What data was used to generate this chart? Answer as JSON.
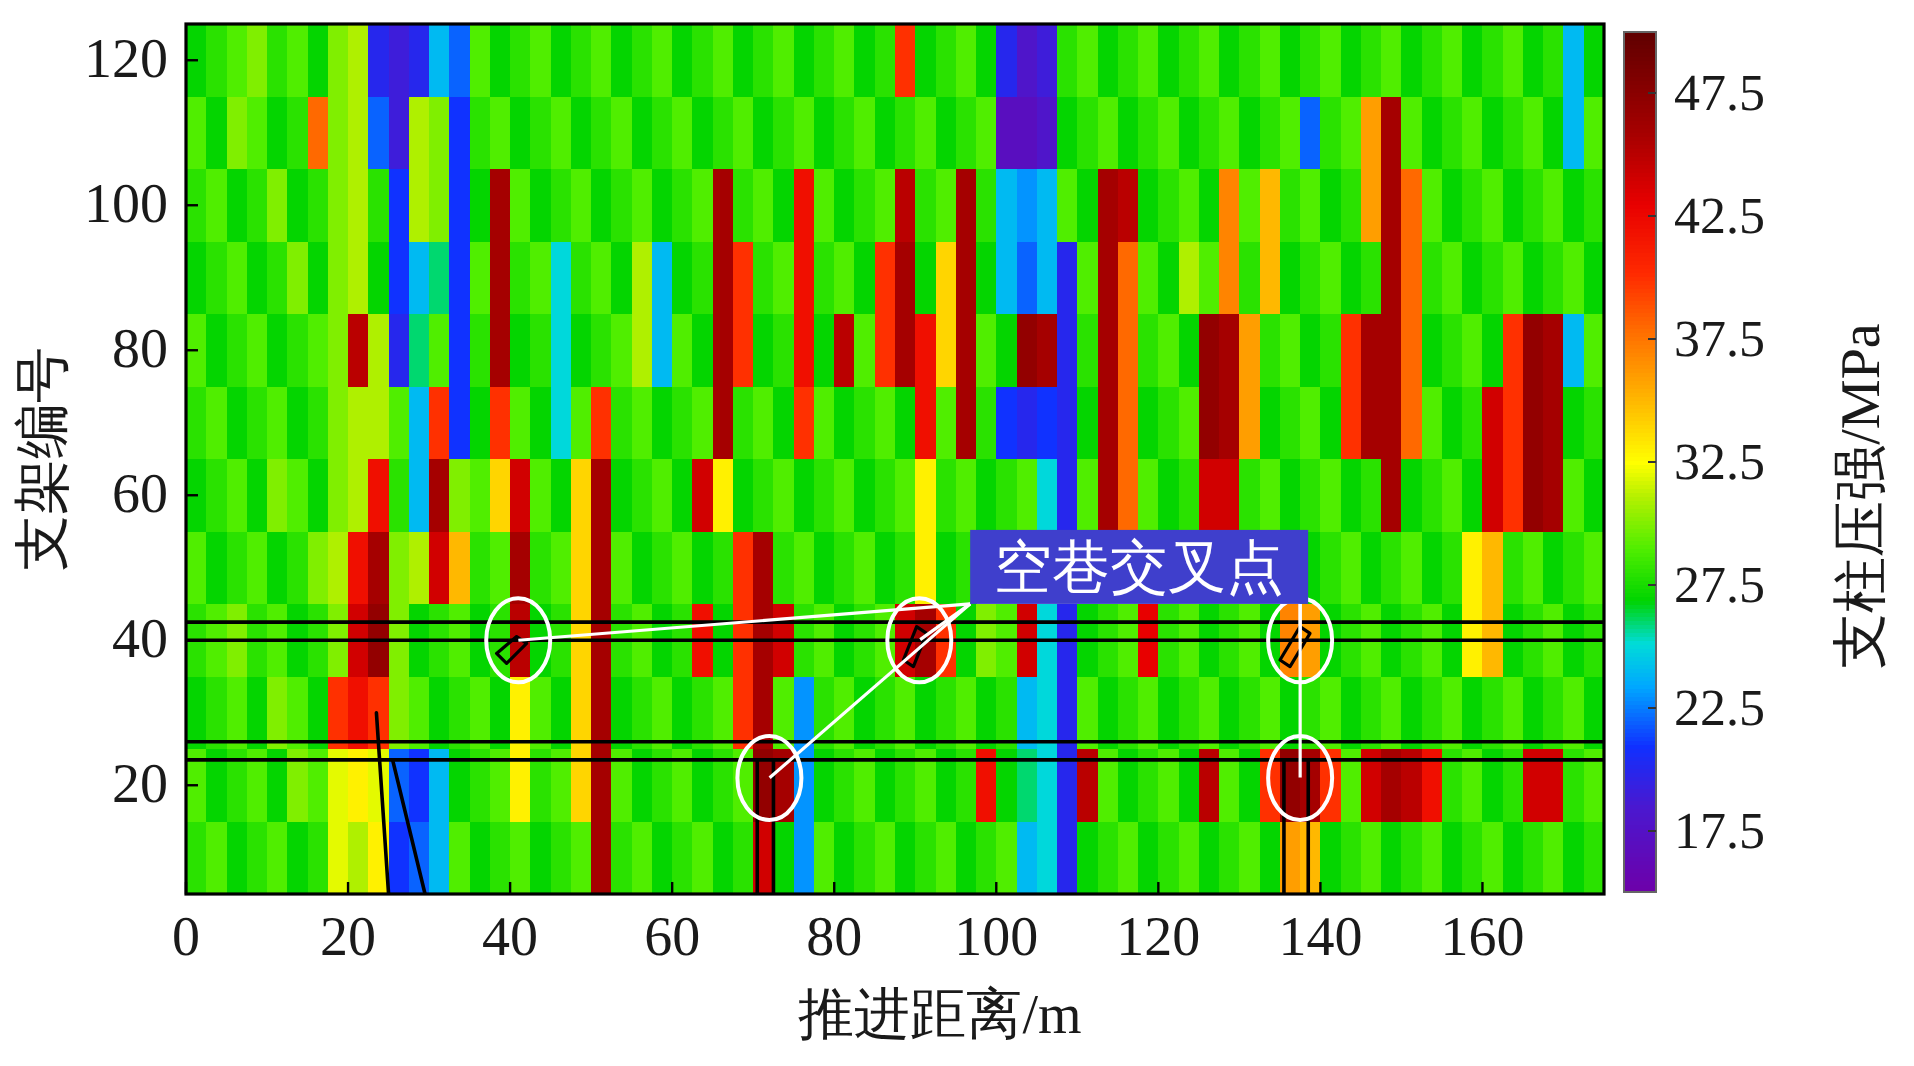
{
  "chart_data": {
    "type": "heatmap",
    "xlabel": "推进距离/m",
    "ylabel": "支架编号",
    "clabel": "支柱压强/MPa",
    "annotations": [
      {
        "text": "空巷交叉点",
        "x": 41,
        "y": 40
      }
    ],
    "x": [
      1.25,
      3.75,
      6.25,
      8.75,
      11.25,
      13.75,
      16.25,
      18.75,
      21.25,
      23.75,
      26.25,
      28.75,
      31.25,
      33.75,
      36.25,
      38.75,
      41.25,
      43.75,
      46.25,
      48.75,
      51.25,
      53.75,
      56.25,
      58.75,
      61.25,
      63.75,
      66.25,
      68.75,
      71.25,
      73.75,
      76.25,
      78.75,
      81.25,
      83.75,
      86.25,
      88.75,
      91.25,
      93.75,
      96.25,
      98.75,
      101.25,
      103.75,
      106.25,
      108.75,
      111.25,
      113.75,
      116.25,
      118.75,
      121.25,
      123.75,
      126.25,
      128.75,
      131.25,
      133.75,
      136.25,
      138.75,
      141.25,
      143.75,
      146.25,
      148.75,
      151.25,
      153.75,
      156.25,
      158.75,
      161.25,
      163.75,
      166.25,
      168.75,
      171.25,
      173.75
    ],
    "y": [
      120,
      110,
      100,
      90,
      80,
      70,
      60,
      50,
      40,
      30,
      20,
      10
    ],
    "xlim": [
      0,
      175
    ],
    "xticks": [
      0,
      20,
      40,
      60,
      80,
      100,
      120,
      140,
      160
    ],
    "ylim": [
      5,
      125
    ],
    "yticks": [
      20,
      40,
      60,
      80,
      100,
      120
    ],
    "clim": [
      15,
      50
    ],
    "cticks": [
      17.5,
      22.5,
      27.5,
      32.5,
      37.5,
      42.5,
      47.5
    ],
    "cells": [
      [
        27,
        28,
        29,
        30,
        28,
        29,
        27,
        30,
        31,
        20,
        19,
        20,
        24,
        22,
        29,
        27,
        28,
        29,
        27,
        28,
        29,
        27,
        28,
        29,
        27,
        28,
        29,
        27,
        28,
        29,
        27,
        28,
        29,
        27,
        28,
        40,
        27,
        28,
        29,
        27,
        20,
        18,
        19,
        28,
        29,
        27,
        28,
        29,
        27,
        28,
        29,
        27,
        28,
        29,
        27,
        28,
        29,
        27,
        28,
        29,
        27,
        28,
        29,
        27,
        28,
        29,
        27,
        28,
        24,
        27
      ],
      [
        29,
        27,
        30,
        29,
        27,
        28,
        38,
        30,
        31,
        22,
        19,
        31,
        30,
        21,
        28,
        29,
        27,
        28,
        29,
        27,
        28,
        29,
        27,
        28,
        29,
        27,
        28,
        29,
        27,
        28,
        29,
        27,
        28,
        29,
        27,
        28,
        29,
        27,
        28,
        29,
        17,
        17,
        18,
        27,
        28,
        29,
        27,
        28,
        29,
        27,
        28,
        29,
        27,
        28,
        29,
        22,
        28,
        29,
        36,
        46,
        29,
        27,
        28,
        29,
        27,
        28,
        29,
        27,
        24,
        29
      ],
      [
        28,
        29,
        27,
        28,
        30,
        27,
        28,
        30,
        31,
        28,
        21,
        31,
        30,
        21,
        27,
        46,
        29,
        27,
        28,
        29,
        27,
        28,
        29,
        27,
        28,
        29,
        46,
        28,
        29,
        27,
        42,
        29,
        27,
        28,
        29,
        45,
        28,
        29,
        46,
        28,
        24,
        23,
        24,
        29,
        27,
        46,
        45,
        27,
        28,
        29,
        27,
        37,
        29,
        35,
        28,
        29,
        27,
        28,
        36,
        46,
        38,
        29,
        27,
        28,
        29,
        27,
        28,
        29,
        27,
        28
      ],
      [
        27,
        28,
        29,
        27,
        28,
        30,
        27,
        30,
        31,
        27,
        21,
        24,
        26,
        21,
        29,
        46,
        28,
        29,
        25,
        28,
        29,
        27,
        31,
        24,
        27,
        28,
        46,
        40,
        28,
        29,
        42,
        28,
        29,
        27,
        40,
        46,
        27,
        34,
        46,
        27,
        24,
        22,
        24,
        20,
        29,
        46,
        38,
        29,
        27,
        31,
        29,
        37,
        28,
        35,
        27,
        28,
        29,
        27,
        28,
        46,
        38,
        28,
        29,
        27,
        28,
        29,
        27,
        28,
        29,
        27
      ],
      [
        29,
        27,
        28,
        29,
        27,
        28,
        29,
        30,
        45,
        31,
        20,
        26,
        29,
        21,
        28,
        46,
        27,
        28,
        25,
        27,
        28,
        29,
        31,
        24,
        29,
        27,
        46,
        40,
        27,
        28,
        42,
        27,
        45,
        29,
        40,
        46,
        42,
        34,
        46,
        29,
        27,
        47,
        46,
        20,
        28,
        46,
        38,
        28,
        29,
        27,
        47,
        46,
        36,
        28,
        29,
        27,
        28,
        40,
        46,
        46,
        38,
        27,
        28,
        29,
        27,
        40,
        47,
        46,
        24,
        29
      ],
      [
        28,
        29,
        27,
        28,
        29,
        27,
        28,
        30,
        31,
        31,
        29,
        24,
        40,
        21,
        27,
        40,
        29,
        27,
        25,
        29,
        40,
        28,
        29,
        27,
        28,
        29,
        46,
        28,
        29,
        27,
        40,
        29,
        27,
        28,
        29,
        27,
        42,
        29,
        46,
        28,
        21,
        20,
        21,
        20,
        27,
        46,
        38,
        27,
        28,
        29,
        47,
        46,
        36,
        27,
        28,
        29,
        27,
        40,
        46,
        46,
        38,
        29,
        27,
        28,
        44,
        40,
        47,
        46,
        27,
        28
      ],
      [
        27,
        28,
        29,
        27,
        30,
        29,
        27,
        30,
        31,
        42,
        28,
        24,
        46,
        30,
        29,
        34,
        44,
        29,
        27,
        34,
        46,
        27,
        28,
        29,
        27,
        44,
        33,
        27,
        28,
        29,
        27,
        28,
        29,
        27,
        28,
        29,
        33,
        28,
        29,
        27,
        28,
        29,
        25,
        20,
        29,
        46,
        38,
        29,
        27,
        28,
        44,
        44,
        28,
        29,
        27,
        28,
        29,
        27,
        28,
        46,
        27,
        28,
        29,
        27,
        44,
        40,
        47,
        46,
        29,
        27
      ],
      [
        29,
        27,
        28,
        29,
        27,
        28,
        30,
        31,
        42,
        46,
        30,
        31,
        44,
        35,
        28,
        29,
        46,
        28,
        29,
        34,
        46,
        29,
        27,
        28,
        29,
        27,
        28,
        40,
        46,
        28,
        29,
        27,
        28,
        29,
        27,
        28,
        33,
        27,
        28,
        null,
        null,
        null,
        null,
        null,
        null,
        null,
        null,
        null,
        null,
        null,
        null,
        null,
        null,
        null,
        null,
        27,
        28,
        29,
        27,
        28,
        29,
        27,
        28,
        33,
        35,
        28,
        29,
        27,
        28,
        29
      ],
      [
        28,
        29,
        30,
        28,
        29,
        27,
        28,
        30,
        44,
        47,
        30,
        27,
        28,
        29,
        27,
        28,
        45,
        27,
        28,
        34,
        46,
        28,
        29,
        27,
        28,
        42,
        27,
        40,
        46,
        44,
        28,
        29,
        27,
        28,
        29,
        44,
        46,
        40,
        27,
        30,
        29,
        44,
        25,
        20,
        27,
        28,
        29,
        43,
        28,
        29,
        27,
        28,
        29,
        27,
        37,
        36,
        27,
        28,
        29,
        27,
        28,
        29,
        27,
        33,
        35,
        27,
        28,
        29,
        27,
        28
      ],
      [
        27,
        28,
        29,
        27,
        30,
        29,
        27,
        40,
        42,
        40,
        30,
        29,
        27,
        28,
        29,
        27,
        33,
        29,
        27,
        34,
        46,
        27,
        28,
        29,
        27,
        28,
        29,
        40,
        46,
        29,
        23,
        28,
        29,
        27,
        28,
        29,
        27,
        28,
        29,
        27,
        28,
        24,
        25,
        20,
        29,
        27,
        28,
        29,
        27,
        28,
        29,
        27,
        28,
        29,
        27,
        28,
        29,
        27,
        28,
        29,
        27,
        28,
        29,
        27,
        28,
        29,
        27,
        28,
        29,
        27
      ],
      [
        29,
        27,
        28,
        29,
        27,
        30,
        29,
        32,
        33,
        32,
        22,
        21,
        24,
        27,
        28,
        29,
        33,
        28,
        29,
        34,
        46,
        29,
        27,
        28,
        29,
        27,
        28,
        29,
        47,
        46,
        23,
        27,
        28,
        29,
        27,
        28,
        29,
        27,
        28,
        42,
        27,
        26,
        25,
        20,
        45,
        29,
        27,
        28,
        29,
        27,
        45,
        29,
        27,
        40,
        47,
        46,
        40,
        29,
        44,
        46,
        45,
        42,
        28,
        29,
        27,
        28,
        44,
        44,
        28,
        29
      ],
      [
        28,
        29,
        27,
        28,
        29,
        27,
        28,
        32,
        31,
        33,
        21,
        22,
        24,
        29,
        27,
        28,
        29,
        27,
        28,
        29,
        46,
        28,
        29,
        27,
        28,
        29,
        27,
        28,
        44,
        27,
        23,
        29,
        27,
        28,
        29,
        27,
        28,
        29,
        27,
        28,
        29,
        24,
        25,
        20,
        27,
        28,
        29,
        27,
        28,
        29,
        27,
        28,
        29,
        27,
        36,
        35,
        27,
        28,
        29,
        27,
        28,
        29,
        27,
        28,
        29,
        27,
        28,
        29,
        27,
        28
      ]
    ],
    "ref_lines": [
      {
        "axis": "y",
        "value": 42.5,
        "color": "#000000"
      },
      {
        "axis": "y",
        "value": 40,
        "color": "#000000"
      },
      {
        "axis": "y",
        "value": 26,
        "color": "#000000"
      },
      {
        "axis": "y",
        "value": 23.5,
        "color": "#000000"
      }
    ],
    "series": [
      {
        "type": "line",
        "color": "#000000",
        "x": [
          23.5,
          25
        ],
        "values": [
          30,
          5
        ]
      },
      {
        "type": "line",
        "color": "#000000",
        "x": [
          25.5,
          29.5
        ],
        "values": [
          23.5,
          5
        ]
      },
      {
        "type": "line",
        "color": "#000000",
        "x": [
          70.5,
          70.5
        ],
        "values": [
          23.5,
          5
        ]
      },
      {
        "type": "line",
        "color": "#000000",
        "x": [
          72.5,
          72.5
        ],
        "values": [
          23.5,
          5
        ]
      },
      {
        "type": "line",
        "color": "#000000",
        "x": [
          135.5,
          135.5
        ],
        "values": [
          23.5,
          5
        ]
      },
      {
        "type": "line",
        "color": "#000000",
        "x": [
          138.5,
          138.5
        ],
        "values": [
          23.5,
          5
        ]
      },
      {
        "type": "scatter",
        "color": "#ffffff",
        "marker": "circle",
        "x": [
          41,
          90.5,
          137.5,
          72,
          137.5
        ],
        "values": [
          40,
          40,
          40,
          21,
          21
        ]
      }
    ]
  }
}
